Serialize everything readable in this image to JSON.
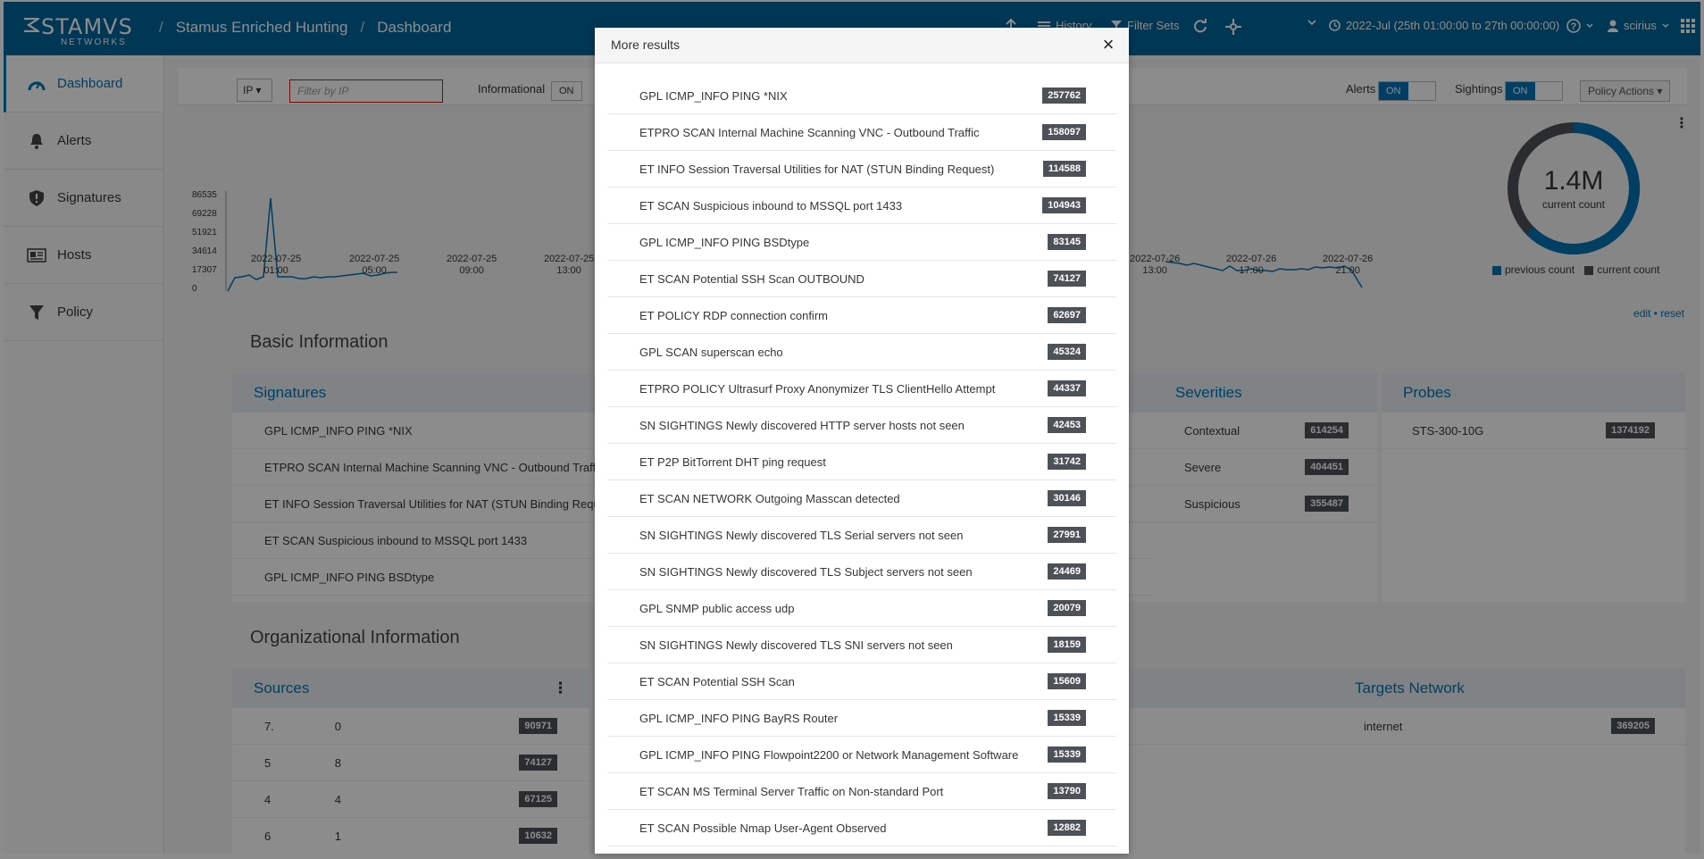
{
  "brand": {
    "name": "STAMVS",
    "sub": "NETWORKS"
  },
  "breadcrumb": {
    "app": "Stamus Enriched Hunting",
    "page": "Dashboard"
  },
  "topnav": {
    "history": "History",
    "filter_sets": "Filter Sets",
    "time_range": "2022-Jul (25th 01:00:00 to 27th 00:00:00)",
    "user": "scirius"
  },
  "sidebar": {
    "items": [
      {
        "label": "Dashboard",
        "icon": "dashboard-icon",
        "active": true
      },
      {
        "label": "Alerts",
        "icon": "bell-icon"
      },
      {
        "label": "Signatures",
        "icon": "shield-icon"
      },
      {
        "label": "Hosts",
        "icon": "id-card-icon"
      },
      {
        "label": "Policy",
        "icon": "filter-icon"
      }
    ]
  },
  "filterbar": {
    "ip_select": "IP",
    "filter_placeholder": "Filter by IP",
    "informational_label": "Informational",
    "informational_state": "ON",
    "alerts_label": "Alerts",
    "alerts_state": "ON",
    "sightings_label": "Sightings",
    "sightings_state": "ON",
    "policy_actions": "Policy Actions"
  },
  "timeline": {
    "y_ticks": [
      "86535",
      "69228",
      "51921",
      "34614",
      "17307",
      "0"
    ],
    "x_ticks_left": [
      [
        "2022-07-25",
        "01:00"
      ],
      [
        "2022-07-25",
        "05:00"
      ],
      [
        "2022-07-25",
        "09:00"
      ],
      [
        "2022-07-25",
        "13:00"
      ]
    ],
    "x_ticks_right": [
      [
        "2022-07-26",
        "13:00"
      ],
      [
        "2022-07-26",
        "17:00"
      ],
      [
        "2022-07-26",
        "21:00"
      ]
    ]
  },
  "donut": {
    "value": "1.4M",
    "caption": "current count",
    "legend_prev": "previous count",
    "legend_curr": "current count"
  },
  "edit_reset": {
    "edit": "edit",
    "reset": "reset"
  },
  "basic_info": {
    "title": "Basic Information",
    "signatures": {
      "title": "Signatures",
      "rows": [
        "GPL ICMP_INFO PING *NIX",
        "ETPRO SCAN Internal Machine Scanning VNC - Outbound Traffic",
        "ET INFO Session Traversal Utilities for NAT (STUN Binding Request)",
        "ET SCAN Suspicious inbound to MSSQL port 1433",
        "GPL ICMP_INFO PING BSDtype"
      ]
    },
    "severities": {
      "title": "Severities",
      "rows": [
        {
          "label": "Contextual",
          "count": "614254"
        },
        {
          "label": "Severe",
          "count": "404451"
        },
        {
          "label": "Suspicious",
          "count": "355487"
        }
      ]
    },
    "probes": {
      "title": "Probes",
      "rows": [
        {
          "label": "STS-300-10G",
          "count": "1374192"
        }
      ]
    }
  },
  "org_info": {
    "title": "Organizational Information",
    "sources": {
      "title": "Sources",
      "rows": [
        {
          "a": "7.",
          "b": "0",
          "count": "90971"
        },
        {
          "a": "5",
          "b": "8",
          "count": "74127"
        },
        {
          "a": "4",
          "b": "4",
          "count": "67125"
        },
        {
          "a": "6",
          "b": "1",
          "count": "10632"
        }
      ]
    },
    "mid_count": "369205",
    "targets": {
      "title": "Targets Network",
      "rows": [
        {
          "label": "internet",
          "count": "369205"
        }
      ]
    }
  },
  "modal": {
    "title": "More results",
    "close_symbol": "×",
    "rows": [
      {
        "label": "GPL ICMP_INFO PING *NIX",
        "count": "257762"
      },
      {
        "label": "ETPRO SCAN Internal Machine Scanning VNC - Outbound Traffic",
        "count": "158097"
      },
      {
        "label": "ET INFO Session Traversal Utilities for NAT (STUN Binding Request)",
        "count": "114588"
      },
      {
        "label": "ET SCAN Suspicious inbound to MSSQL port 1433",
        "count": "104943"
      },
      {
        "label": "GPL ICMP_INFO PING BSDtype",
        "count": "83145"
      },
      {
        "label": "ET SCAN Potential SSH Scan OUTBOUND",
        "count": "74127"
      },
      {
        "label": "ET POLICY RDP connection confirm",
        "count": "62697"
      },
      {
        "label": "GPL SCAN superscan echo",
        "count": "45324"
      },
      {
        "label": "ETPRO POLICY Ultrasurf Proxy Anonymizer TLS ClientHello Attempt",
        "count": "44337"
      },
      {
        "label": "SN SIGHTINGS Newly discovered HTTP server hosts not seen",
        "count": "42453"
      },
      {
        "label": "ET P2P BitTorrent DHT ping request",
        "count": "31742"
      },
      {
        "label": "ET SCAN NETWORK Outgoing Masscan detected",
        "count": "30146"
      },
      {
        "label": "SN SIGHTINGS Newly discovered TLS Serial servers not seen",
        "count": "27991"
      },
      {
        "label": "SN SIGHTINGS Newly discovered TLS Subject servers not seen",
        "count": "24469"
      },
      {
        "label": "GPL SNMP public access udp",
        "count": "20079"
      },
      {
        "label": "SN SIGHTINGS Newly discovered TLS SNI servers not seen",
        "count": "18159"
      },
      {
        "label": "ET SCAN Potential SSH Scan",
        "count": "15609"
      },
      {
        "label": "GPL ICMP_INFO PING BayRS Router",
        "count": "15339"
      },
      {
        "label": "GPL ICMP_INFO PING Flowpoint2200 or Network Management Software",
        "count": "15339"
      },
      {
        "label": "ET SCAN MS Terminal Server Traffic on Non-standard Port",
        "count": "13790"
      },
      {
        "label": "ET SCAN Possible Nmap User-Agent Observed",
        "count": "12882"
      }
    ]
  },
  "colors": {
    "brand": "#00659c",
    "accent": "#0073b6",
    "badge": "#4d5258",
    "invalid": "#c9190b"
  }
}
